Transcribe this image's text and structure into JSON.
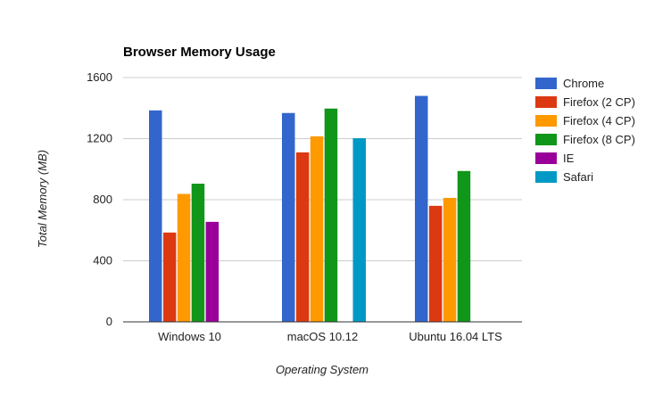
{
  "chart_data": {
    "type": "bar",
    "title": "Browser Memory Usage",
    "xlabel": "Operating System",
    "ylabel": "Total Memory (MB)",
    "ylim": [
      0,
      1600
    ],
    "yticks": [
      0,
      400,
      800,
      1200,
      1600
    ],
    "grid": true,
    "legend_position": "right",
    "categories": [
      "Windows 10",
      "macOS 10.12",
      "Ubuntu 16.04 LTS"
    ],
    "series": [
      {
        "name": "Chrome",
        "color": "#3366cc",
        "values": [
          1385,
          1368,
          1480
        ]
      },
      {
        "name": "Firefox (2 CP)",
        "color": "#dc3912",
        "values": [
          585,
          1110,
          760
        ]
      },
      {
        "name": "Firefox (4 CP)",
        "color": "#ff9900",
        "values": [
          838,
          1215,
          812
        ]
      },
      {
        "name": "Firefox (8 CP)",
        "color": "#109618",
        "values": [
          905,
          1397,
          988
        ]
      },
      {
        "name": "IE",
        "color": "#990099",
        "values": [
          655,
          null,
          null
        ]
      },
      {
        "name": "Safari",
        "color": "#0099c6",
        "values": [
          null,
          1203,
          null
        ]
      }
    ]
  }
}
